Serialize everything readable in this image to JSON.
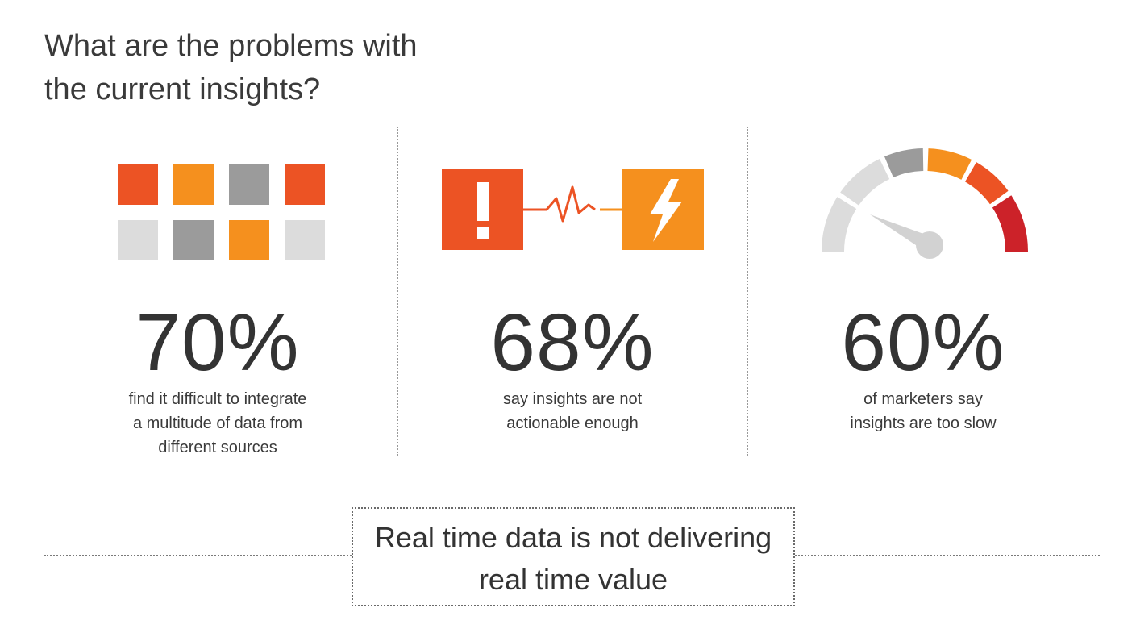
{
  "heading": {
    "line1": "What are the problems with",
    "line2": "the current insights?"
  },
  "stats": [
    {
      "value": "70%",
      "caption": [
        "find it difficult to integrate",
        "a multitude of data from",
        "different sources"
      ],
      "icon": "data-grid-icon"
    },
    {
      "value": "68%",
      "caption": [
        "say insights are not",
        "actionable enough"
      ],
      "icon": "alert-to-action-icon"
    },
    {
      "value": "60%",
      "caption": [
        "of marketers say",
        "insights are too slow"
      ],
      "icon": "speedometer-icon"
    }
  ],
  "callout": {
    "line1": "Real time data is not delivering",
    "line2": "real time value"
  },
  "colors": {
    "red_orange": "#ec5324",
    "orange": "#f5901e",
    "dark_gray": "#9b9b9b",
    "light_gray": "#dcdcdc",
    "red": "#cc2229"
  }
}
